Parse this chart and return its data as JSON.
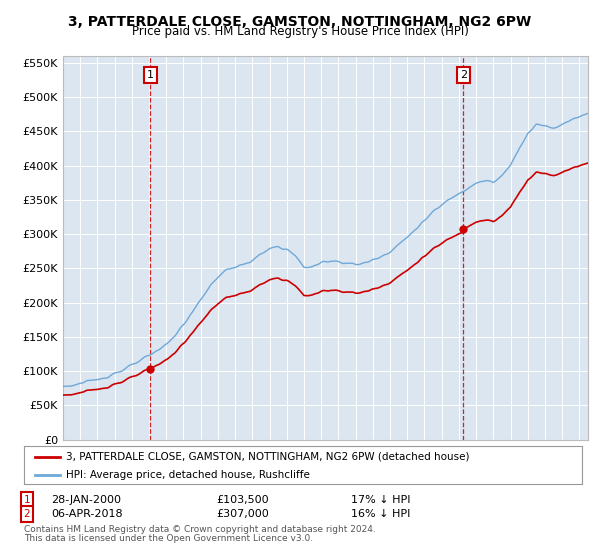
{
  "title": "3, PATTERDALE CLOSE, GAMSTON, NOTTINGHAM, NG2 6PW",
  "subtitle": "Price paid vs. HM Land Registry's House Price Index (HPI)",
  "sale1_date": 2000.08,
  "sale1_price": 103500,
  "sale2_date": 2018.26,
  "sale2_price": 307000,
  "sale1_label": "1",
  "sale2_label": "2",
  "legend1": "3, PATTERDALE CLOSE, GAMSTON, NOTTINGHAM, NG2 6PW (detached house)",
  "legend2": "HPI: Average price, detached house, Rushcliffe",
  "footnote1": "Contains HM Land Registry data © Crown copyright and database right 2024.",
  "footnote2": "This data is licensed under the Open Government Licence v3.0.",
  "hpi_color": "#6fa8d8",
  "sale_color": "#cc0000",
  "box_color": "#cc0000",
  "background_color": "#dce6f1",
  "ylim_min": 0,
  "ylim_max": 560000,
  "xlim_min": 1995.0,
  "xlim_max": 2025.5,
  "hpi_anchors": [
    [
      1995.0,
      78000
    ],
    [
      1995.5,
      79000
    ],
    [
      1996.0,
      82000
    ],
    [
      1996.5,
      84000
    ],
    [
      1997.0,
      88000
    ],
    [
      1997.5,
      92000
    ],
    [
      1998.0,
      97000
    ],
    [
      1998.5,
      102000
    ],
    [
      1999.0,
      108000
    ],
    [
      1999.5,
      115000
    ],
    [
      2000.0,
      122000
    ],
    [
      2000.5,
      130000
    ],
    [
      2001.0,
      140000
    ],
    [
      2001.5,
      152000
    ],
    [
      2002.0,
      168000
    ],
    [
      2002.5,
      185000
    ],
    [
      2003.0,
      205000
    ],
    [
      2003.5,
      222000
    ],
    [
      2004.0,
      238000
    ],
    [
      2004.5,
      248000
    ],
    [
      2005.0,
      252000
    ],
    [
      2005.5,
      255000
    ],
    [
      2006.0,
      262000
    ],
    [
      2006.5,
      270000
    ],
    [
      2007.0,
      278000
    ],
    [
      2007.5,
      282000
    ],
    [
      2008.0,
      278000
    ],
    [
      2008.5,
      268000
    ],
    [
      2009.0,
      252000
    ],
    [
      2009.5,
      252000
    ],
    [
      2010.0,
      258000
    ],
    [
      2010.5,
      262000
    ],
    [
      2011.0,
      260000
    ],
    [
      2011.5,
      258000
    ],
    [
      2012.0,
      255000
    ],
    [
      2012.5,
      258000
    ],
    [
      2013.0,
      262000
    ],
    [
      2013.5,
      268000
    ],
    [
      2014.0,
      275000
    ],
    [
      2014.5,
      285000
    ],
    [
      2015.0,
      295000
    ],
    [
      2015.5,
      308000
    ],
    [
      2016.0,
      320000
    ],
    [
      2016.5,
      332000
    ],
    [
      2017.0,
      342000
    ],
    [
      2017.5,
      352000
    ],
    [
      2018.0,
      360000
    ],
    [
      2018.26,
      364000
    ],
    [
      2018.5,
      368000
    ],
    [
      2019.0,
      375000
    ],
    [
      2019.5,
      378000
    ],
    [
      2020.0,
      375000
    ],
    [
      2020.5,
      385000
    ],
    [
      2021.0,
      400000
    ],
    [
      2021.5,
      425000
    ],
    [
      2022.0,
      448000
    ],
    [
      2022.5,
      460000
    ],
    [
      2023.0,
      458000
    ],
    [
      2023.5,
      455000
    ],
    [
      2024.0,
      460000
    ],
    [
      2024.5,
      468000
    ],
    [
      2025.0,
      472000
    ],
    [
      2025.5,
      476000
    ]
  ]
}
